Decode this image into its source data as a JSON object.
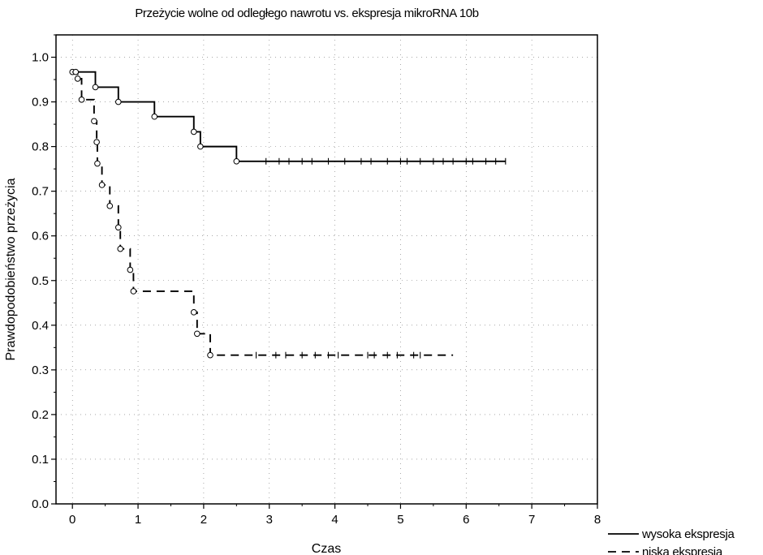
{
  "chart_data": {
    "type": "line",
    "subtype": "kaplan-meier step",
    "title": "Przeżycie wolne od odległego nawrotu vs. ekspresja mikroRNA 10b",
    "xlabel": "Czas",
    "ylabel": "Prawdopodobieństwo przeżycia",
    "xlim": [
      -0.25,
      8
    ],
    "ylim": [
      0,
      1.05
    ],
    "x_ticks": [
      "0",
      "1",
      "2",
      "3",
      "4",
      "5",
      "6",
      "7",
      "8"
    ],
    "y_ticks": [
      "0.0",
      "0.1",
      "0.2",
      "0.3",
      "0.4",
      "0.5",
      "0.6",
      "0.7",
      "0.8",
      "0.9",
      "1.0"
    ],
    "grid": "dotted",
    "legend_position": "bottom-right-outside",
    "series": [
      {
        "name": "wysoka ekspresja",
        "line_style": "solid",
        "color": "#000000",
        "steps": [
          [
            0,
            0.967
          ],
          [
            0.35,
            0.933
          ],
          [
            0.7,
            0.9
          ],
          [
            1.25,
            0.867
          ],
          [
            1.85,
            0.833
          ],
          [
            1.95,
            0.8
          ],
          [
            2.5,
            0.767
          ]
        ],
        "end_x": 6.6,
        "event_markers": [
          [
            0.0,
            0.967
          ],
          [
            0.35,
            0.933
          ],
          [
            0.7,
            0.9
          ],
          [
            1.25,
            0.867
          ],
          [
            1.85,
            0.833
          ],
          [
            1.95,
            0.8
          ],
          [
            2.5,
            0.767
          ]
        ],
        "censored_x": [
          2.95,
          3.15,
          3.3,
          3.5,
          3.65,
          3.9,
          4.15,
          4.4,
          4.55,
          4.8,
          5.0,
          5.1,
          5.3,
          5.5,
          5.65,
          5.8,
          6.0,
          6.1,
          6.3,
          6.45,
          6.6
        ]
      },
      {
        "name": "niska ekspresja",
        "line_style": "dashed",
        "color": "#000000",
        "steps": [
          [
            0,
            0.967
          ],
          [
            0.08,
            0.952
          ],
          [
            0.14,
            0.905
          ],
          [
            0.33,
            0.857
          ],
          [
            0.37,
            0.81
          ],
          [
            0.38,
            0.762
          ],
          [
            0.45,
            0.714
          ],
          [
            0.57,
            0.667
          ],
          [
            0.7,
            0.619
          ],
          [
            0.73,
            0.571
          ],
          [
            0.88,
            0.524
          ],
          [
            0.93,
            0.476
          ],
          [
            1.85,
            0.429
          ],
          [
            1.9,
            0.381
          ],
          [
            2.1,
            0.333
          ]
        ],
        "end_x": 5.8,
        "event_markers": [
          [
            0.05,
            0.967
          ],
          [
            0.08,
            0.952
          ],
          [
            0.14,
            0.905
          ],
          [
            0.33,
            0.857
          ],
          [
            0.37,
            0.81
          ],
          [
            0.38,
            0.762
          ],
          [
            0.45,
            0.714
          ],
          [
            0.57,
            0.667
          ],
          [
            0.7,
            0.619
          ],
          [
            0.73,
            0.571
          ],
          [
            0.88,
            0.524
          ],
          [
            0.93,
            0.476
          ],
          [
            1.85,
            0.429
          ],
          [
            1.9,
            0.381
          ],
          [
            2.1,
            0.333
          ]
        ],
        "censored_x": [
          2.8,
          3.1,
          3.25,
          3.5,
          3.7,
          3.9,
          4.05,
          4.5,
          4.6,
          4.8,
          4.95,
          5.2,
          5.3
        ]
      }
    ]
  }
}
